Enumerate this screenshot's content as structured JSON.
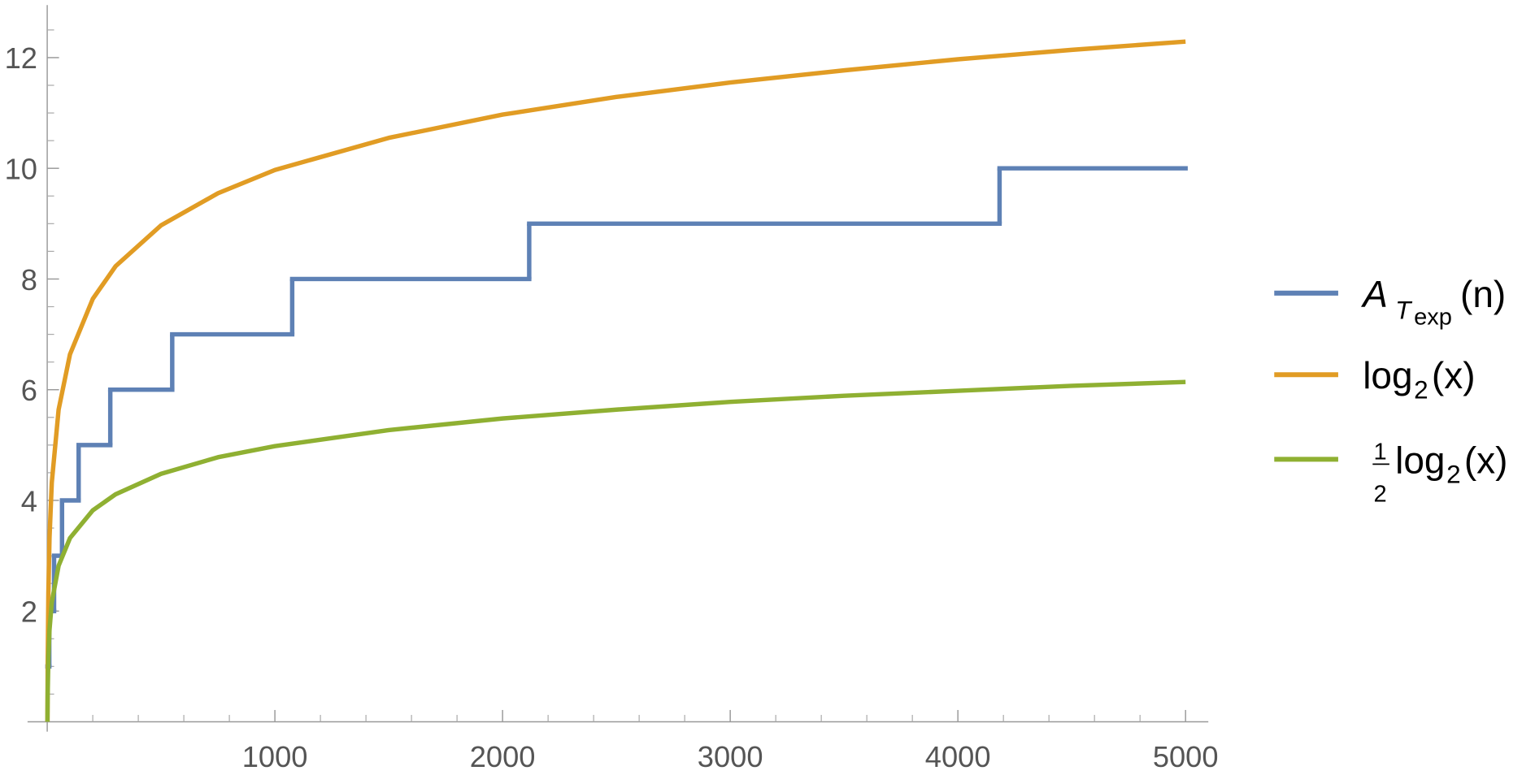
{
  "chart_data": {
    "type": "line",
    "xlim": [
      0,
      5100
    ],
    "ylim": [
      0,
      12.95
    ],
    "xticks": [
      1000,
      2000,
      3000,
      4000,
      5000
    ],
    "yticks": [
      2,
      4,
      6,
      8,
      10,
      12
    ],
    "xminorticks": [
      200,
      400,
      600,
      800,
      1200,
      1400,
      1600,
      1800,
      2200,
      2400,
      2600,
      2800,
      3200,
      3400,
      3600,
      3800,
      4200,
      4400,
      4600,
      4800
    ],
    "yminorticks": [
      0.5,
      1,
      1.5,
      2.5,
      3,
      3.5,
      4.5,
      5,
      5.5,
      6.5,
      7,
      7.5,
      8.5,
      9,
      9.5,
      10.5,
      11,
      11.5,
      12.5
    ],
    "series": [
      {
        "name": [
          "A",
          "T",
          "exp",
          "(n)"
        ],
        "color": "#5e81b5",
        "shape": "step",
        "x": [
          1,
          9,
          30,
          65,
          138,
          277,
          549,
          1076,
          2117,
          4183
        ],
        "x_end": 5000,
        "values": [
          1,
          2,
          3,
          4,
          5,
          6,
          7,
          8,
          9,
          10
        ]
      },
      {
        "name": [
          "log",
          "2",
          "(x)"
        ],
        "color": "#e19c24",
        "x": [
          1,
          2,
          5,
          10,
          20,
          50,
          100,
          200,
          300,
          500,
          750,
          1000,
          1500,
          2000,
          2500,
          3000,
          3500,
          4000,
          4500,
          5000
        ],
        "values": [
          0,
          1,
          2.32,
          3.32,
          4.32,
          5.64,
          6.64,
          7.64,
          8.23,
          8.97,
          9.55,
          9.97,
          10.55,
          10.97,
          11.29,
          11.55,
          11.77,
          11.97,
          12.14,
          12.29
        ]
      },
      {
        "name": [
          "1",
          "2",
          "log",
          "2",
          "(x)"
        ],
        "color": "#8fb032",
        "x": [
          1,
          2,
          5,
          10,
          20,
          50,
          100,
          200,
          300,
          500,
          750,
          1000,
          1500,
          2000,
          2500,
          3000,
          3500,
          4000,
          4500,
          5000
        ],
        "values": [
          0,
          0.5,
          1.16,
          1.66,
          2.16,
          2.82,
          3.32,
          3.82,
          4.11,
          4.48,
          4.78,
          4.98,
          5.27,
          5.48,
          5.64,
          5.78,
          5.89,
          5.98,
          6.07,
          6.14
        ]
      }
    ]
  }
}
